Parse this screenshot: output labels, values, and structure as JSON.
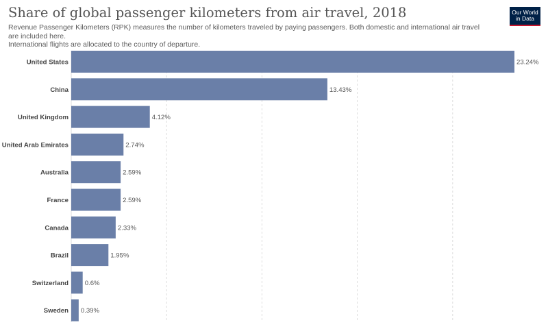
{
  "title": "Share of global passenger kilometers from air travel, 2018",
  "subtitle_line1": "Revenue Passenger Kilometers (RPK) measures the number of kilometers traveled by paying passengers. Both domestic and international air travel are included here.",
  "subtitle_line2": "International flights are allocated to the country of departure.",
  "logo_line1": "Our World",
  "logo_line2": "in Data",
  "colors": {
    "bar": "#6a7fa8",
    "grid": "#dddddd",
    "logo_bg": "#002147",
    "logo_accent": "#c7142b"
  },
  "chart_data": {
    "type": "bar",
    "orientation": "horizontal",
    "categories": [
      "United States",
      "China",
      "United Kingdom",
      "United Arab Emirates",
      "Australia",
      "France",
      "Canada",
      "Brazil",
      "Switzerland",
      "Sweden"
    ],
    "values": [
      23.24,
      13.43,
      4.12,
      2.74,
      2.59,
      2.59,
      2.33,
      1.95,
      0.6,
      0.39
    ],
    "value_labels": [
      "23.24%",
      "13.43%",
      "4.12%",
      "2.74%",
      "2.59%",
      "2.59%",
      "2.33%",
      "1.95%",
      "0.6%",
      "0.39%"
    ],
    "unit": "%",
    "xlim": [
      0,
      23.24
    ],
    "gridlines": [
      0,
      5,
      10,
      15,
      20
    ],
    "grid": true,
    "legend": false
  }
}
